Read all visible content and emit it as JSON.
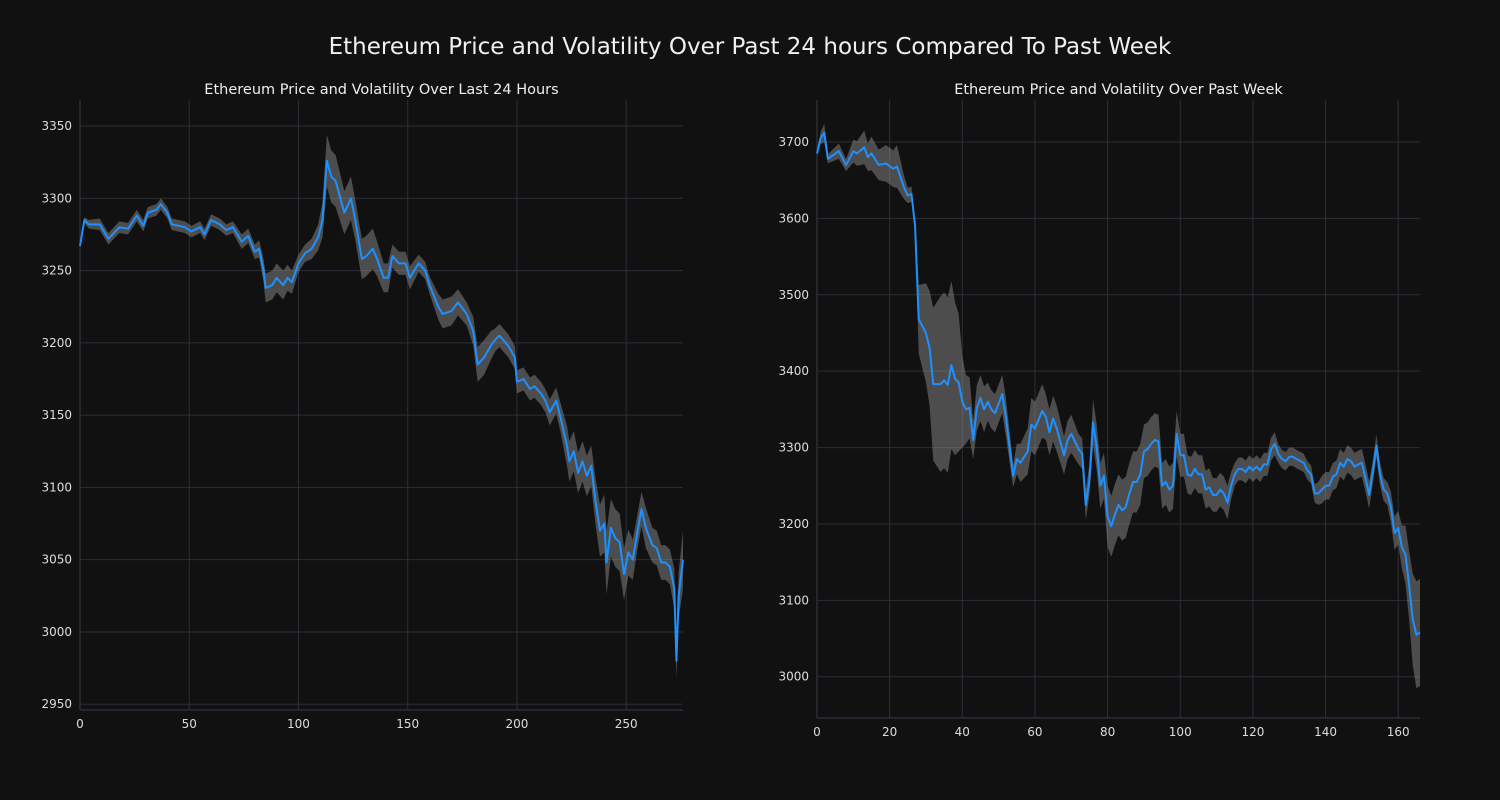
{
  "title": "Ethereum Price and Volatility Over Past 24 hours Compared To Past Week",
  "colors": {
    "background": "#111111",
    "line": "#1e90ff",
    "band": "#8c8c8c",
    "grid": "#2a2f38"
  },
  "chart_data": [
    {
      "type": "line",
      "title": "Ethereum Price and Volatility Over Last 24 Hours",
      "xlabel": "",
      "ylabel": "",
      "xlim": [
        0,
        276
      ],
      "ylim": [
        2946,
        3368
      ],
      "xticks": [
        0,
        50,
        100,
        150,
        200,
        250
      ],
      "yticks": [
        2950,
        3000,
        3050,
        3100,
        3150,
        3200,
        3250,
        3300,
        3350
      ],
      "grid": true,
      "points_format": [
        "x",
        "price",
        "volatility_band_halfwidth"
      ],
      "points": [
        [
          0,
          3267,
          1
        ],
        [
          2,
          3285,
          2
        ],
        [
          4,
          3282,
          3
        ],
        [
          9,
          3282,
          4
        ],
        [
          13,
          3272,
          4
        ],
        [
          18,
          3280,
          4
        ],
        [
          22,
          3279,
          4
        ],
        [
          26,
          3288,
          4
        ],
        [
          29,
          3281,
          4
        ],
        [
          31,
          3290,
          4
        ],
        [
          35,
          3292,
          4
        ],
        [
          37,
          3296,
          4
        ],
        [
          40,
          3290,
          4
        ],
        [
          42,
          3282,
          4
        ],
        [
          48,
          3280,
          4
        ],
        [
          51,
          3277,
          4
        ],
        [
          55,
          3280,
          4
        ],
        [
          57,
          3275,
          4
        ],
        [
          60,
          3285,
          4
        ],
        [
          64,
          3282,
          4
        ],
        [
          67,
          3278,
          4
        ],
        [
          70,
          3280,
          4
        ],
        [
          74,
          3270,
          5
        ],
        [
          77,
          3274,
          5
        ],
        [
          80,
          3263,
          5
        ],
        [
          82,
          3265,
          6
        ],
        [
          84,
          3250,
          8
        ],
        [
          85,
          3238,
          10
        ],
        [
          88,
          3240,
          10
        ],
        [
          90,
          3245,
          10
        ],
        [
          93,
          3240,
          10
        ],
        [
          95,
          3245,
          9
        ],
        [
          97,
          3242,
          8
        ],
        [
          100,
          3255,
          6
        ],
        [
          103,
          3262,
          6
        ],
        [
          106,
          3265,
          7
        ],
        [
          109,
          3273,
          9
        ],
        [
          111,
          3285,
          12
        ],
        [
          113,
          3326,
          18
        ],
        [
          115,
          3315,
          18
        ],
        [
          117,
          3312,
          18
        ],
        [
          121,
          3290,
          15
        ],
        [
          124,
          3300,
          15
        ],
        [
          126,
          3285,
          14
        ],
        [
          129,
          3258,
          14
        ],
        [
          131,
          3260,
          14
        ],
        [
          134,
          3265,
          14
        ],
        [
          136,
          3258,
          12
        ],
        [
          139,
          3245,
          10
        ],
        [
          141,
          3245,
          10
        ],
        [
          143,
          3260,
          8
        ],
        [
          146,
          3255,
          8
        ],
        [
          149,
          3255,
          8
        ],
        [
          151,
          3245,
          8
        ],
        [
          155,
          3255,
          6
        ],
        [
          158,
          3250,
          6
        ],
        [
          160,
          3240,
          6
        ],
        [
          164,
          3225,
          9
        ],
        [
          166,
          3220,
          10
        ],
        [
          170,
          3222,
          10
        ],
        [
          173,
          3228,
          9
        ],
        [
          177,
          3220,
          8
        ],
        [
          180,
          3208,
          10
        ],
        [
          182,
          3185,
          12
        ],
        [
          185,
          3190,
          12
        ],
        [
          188,
          3198,
          10
        ],
        [
          190,
          3202,
          8
        ],
        [
          192,
          3205,
          8
        ],
        [
          196,
          3198,
          8
        ],
        [
          199,
          3190,
          8
        ],
        [
          200,
          3173,
          8
        ],
        [
          203,
          3175,
          8
        ],
        [
          206,
          3168,
          8
        ],
        [
          208,
          3170,
          8
        ],
        [
          211,
          3165,
          8
        ],
        [
          213,
          3160,
          8
        ],
        [
          215,
          3152,
          9
        ],
        [
          218,
          3160,
          9
        ],
        [
          220,
          3148,
          10
        ],
        [
          223,
          3128,
          14
        ],
        [
          224,
          3118,
          14
        ],
        [
          226,
          3125,
          14
        ],
        [
          228,
          3110,
          14
        ],
        [
          230,
          3118,
          14
        ],
        [
          232,
          3108,
          14
        ],
        [
          234,
          3115,
          14
        ],
        [
          236,
          3090,
          16
        ],
        [
          238,
          3070,
          18
        ],
        [
          240,
          3075,
          20
        ],
        [
          241,
          3048,
          22
        ],
        [
          243,
          3072,
          20
        ],
        [
          245,
          3065,
          20
        ],
        [
          247,
          3062,
          20
        ],
        [
          249,
          3040,
          18
        ],
        [
          251,
          3055,
          16
        ],
        [
          253,
          3050,
          14
        ],
        [
          255,
          3068,
          12
        ],
        [
          257,
          3085,
          12
        ],
        [
          259,
          3072,
          14
        ],
        [
          262,
          3060,
          12
        ],
        [
          264,
          3058,
          12
        ],
        [
          266,
          3048,
          12
        ],
        [
          268,
          3048,
          12
        ],
        [
          270,
          3045,
          12
        ],
        [
          272,
          3030,
          14
        ],
        [
          273,
          2980,
          12
        ],
        [
          274,
          3025,
          16
        ],
        [
          276,
          3050,
          20
        ]
      ]
    },
    {
      "type": "line",
      "title": "Ethereum Price and Volatility Over Past Week",
      "xlabel": "",
      "ylabel": "",
      "xlim": [
        0,
        166
      ],
      "ylim": [
        2946,
        3755
      ],
      "xticks": [
        0,
        20,
        40,
        60,
        80,
        100,
        120,
        140,
        160
      ],
      "yticks": [
        3000,
        3100,
        3200,
        3300,
        3400,
        3500,
        3600,
        3700
      ],
      "grid": true,
      "points_format": [
        "x",
        "price",
        "volatility_band_halfwidth"
      ],
      "points": [
        [
          0,
          3685,
          2
        ],
        [
          1,
          3705,
          8
        ],
        [
          2,
          3712,
          12
        ],
        [
          3,
          3678,
          6
        ],
        [
          6,
          3688,
          10
        ],
        [
          8,
          3670,
          8
        ],
        [
          10,
          3688,
          15
        ],
        [
          11,
          3685,
          16
        ],
        [
          13,
          3693,
          22
        ],
        [
          14,
          3680,
          18
        ],
        [
          15,
          3685,
          22
        ],
        [
          17,
          3670,
          20
        ],
        [
          19,
          3672,
          24
        ],
        [
          21,
          3665,
          24
        ],
        [
          22,
          3668,
          28
        ],
        [
          24,
          3640,
          15
        ],
        [
          25,
          3630,
          10
        ],
        [
          26,
          3632,
          10
        ],
        [
          27,
          3590,
          5
        ],
        [
          28,
          3468,
          45
        ],
        [
          30,
          3450,
          65
        ],
        [
          31,
          3430,
          75
        ],
        [
          32,
          3383,
          100
        ],
        [
          34,
          3383,
          115
        ],
        [
          35,
          3388,
          115
        ],
        [
          36,
          3382,
          115
        ],
        [
          37,
          3408,
          110
        ],
        [
          38,
          3390,
          100
        ],
        [
          39,
          3385,
          90
        ],
        [
          40,
          3360,
          60
        ],
        [
          41,
          3350,
          45
        ],
        [
          42,
          3352,
          40
        ],
        [
          43,
          3310,
          25
        ],
        [
          44,
          3352,
          30
        ],
        [
          45,
          3365,
          30
        ],
        [
          46,
          3350,
          30
        ],
        [
          47,
          3360,
          25
        ],
        [
          48,
          3350,
          25
        ],
        [
          49,
          3345,
          25
        ],
        [
          51,
          3370,
          25
        ],
        [
          52,
          3340,
          25
        ],
        [
          54,
          3263,
          15
        ],
        [
          55,
          3285,
          20
        ],
        [
          56,
          3280,
          25
        ],
        [
          58,
          3295,
          30
        ],
        [
          59,
          3330,
          35
        ],
        [
          60,
          3325,
          35
        ],
        [
          62,
          3348,
          35
        ],
        [
          63,
          3340,
          30
        ],
        [
          64,
          3320,
          30
        ],
        [
          65,
          3338,
          30
        ],
        [
          66,
          3325,
          30
        ],
        [
          68,
          3290,
          25
        ],
        [
          69,
          3310,
          25
        ],
        [
          70,
          3318,
          25
        ],
        [
          72,
          3298,
          20
        ],
        [
          73,
          3292,
          20
        ],
        [
          74,
          3225,
          20
        ],
        [
          75,
          3258,
          20
        ],
        [
          76,
          3333,
          30
        ],
        [
          77,
          3300,
          30
        ],
        [
          78,
          3250,
          30
        ],
        [
          79,
          3263,
          30
        ],
        [
          80,
          3210,
          40
        ],
        [
          81,
          3197,
          40
        ],
        [
          82,
          3212,
          40
        ],
        [
          83,
          3225,
          40
        ],
        [
          84,
          3218,
          40
        ],
        [
          85,
          3222,
          40
        ],
        [
          86,
          3240,
          40
        ],
        [
          87,
          3255,
          40
        ],
        [
          88,
          3255,
          40
        ],
        [
          89,
          3265,
          40
        ],
        [
          90,
          3295,
          35
        ],
        [
          91,
          3298,
          35
        ],
        [
          92,
          3305,
          35
        ],
        [
          93,
          3310,
          35
        ],
        [
          94,
          3308,
          35
        ],
        [
          95,
          3250,
          30
        ],
        [
          96,
          3255,
          30
        ],
        [
          97,
          3245,
          30
        ],
        [
          98,
          3250,
          30
        ],
        [
          99,
          3318,
          30
        ],
        [
          100,
          3290,
          28
        ],
        [
          101,
          3290,
          28
        ],
        [
          102,
          3265,
          25
        ],
        [
          103,
          3263,
          25
        ],
        [
          104,
          3272,
          25
        ],
        [
          105,
          3265,
          25
        ],
        [
          106,
          3265,
          25
        ],
        [
          107,
          3245,
          25
        ],
        [
          108,
          3248,
          25
        ],
        [
          109,
          3238,
          22
        ],
        [
          110,
          3238,
          22
        ],
        [
          111,
          3245,
          22
        ],
        [
          112,
          3240,
          22
        ],
        [
          113,
          3228,
          22
        ],
        [
          114,
          3250,
          18
        ],
        [
          115,
          3265,
          15
        ],
        [
          116,
          3272,
          15
        ],
        [
          117,
          3272,
          15
        ],
        [
          118,
          3268,
          15
        ],
        [
          119,
          3275,
          15
        ],
        [
          120,
          3270,
          15
        ],
        [
          121,
          3275,
          15
        ],
        [
          122,
          3270,
          15
        ],
        [
          123,
          3278,
          15
        ],
        [
          124,
          3278,
          15
        ],
        [
          125,
          3298,
          15
        ],
        [
          126,
          3305,
          15
        ],
        [
          127,
          3292,
          12
        ],
        [
          128,
          3285,
          12
        ],
        [
          129,
          3282,
          12
        ],
        [
          130,
          3288,
          12
        ],
        [
          131,
          3288,
          12
        ],
        [
          132,
          3285,
          12
        ],
        [
          134,
          3280,
          12
        ],
        [
          135,
          3270,
          12
        ],
        [
          136,
          3265,
          12
        ],
        [
          137,
          3240,
          12
        ],
        [
          138,
          3240,
          15
        ],
        [
          139,
          3245,
          18
        ],
        [
          140,
          3250,
          18
        ],
        [
          141,
          3250,
          18
        ],
        [
          142,
          3262,
          18
        ],
        [
          143,
          3265,
          18
        ],
        [
          144,
          3280,
          18
        ],
        [
          145,
          3275,
          18
        ],
        [
          146,
          3285,
          18
        ],
        [
          147,
          3282,
          18
        ],
        [
          148,
          3275,
          18
        ],
        [
          149,
          3278,
          18
        ],
        [
          150,
          3280,
          18
        ],
        [
          151,
          3260,
          18
        ],
        [
          152,
          3238,
          18
        ],
        [
          153,
          3268,
          15
        ],
        [
          154,
          3302,
          15
        ],
        [
          155,
          3265,
          15
        ],
        [
          156,
          3245,
          15
        ],
        [
          157,
          3240,
          15
        ],
        [
          158,
          3222,
          20
        ],
        [
          159,
          3188,
          22
        ],
        [
          160,
          3195,
          22
        ],
        [
          161,
          3170,
          28
        ],
        [
          162,
          3160,
          38
        ],
        [
          163,
          3120,
          45
        ],
        [
          164,
          3075,
          60
        ],
        [
          165,
          3055,
          70
        ],
        [
          166,
          3058,
          70
        ]
      ]
    }
  ]
}
